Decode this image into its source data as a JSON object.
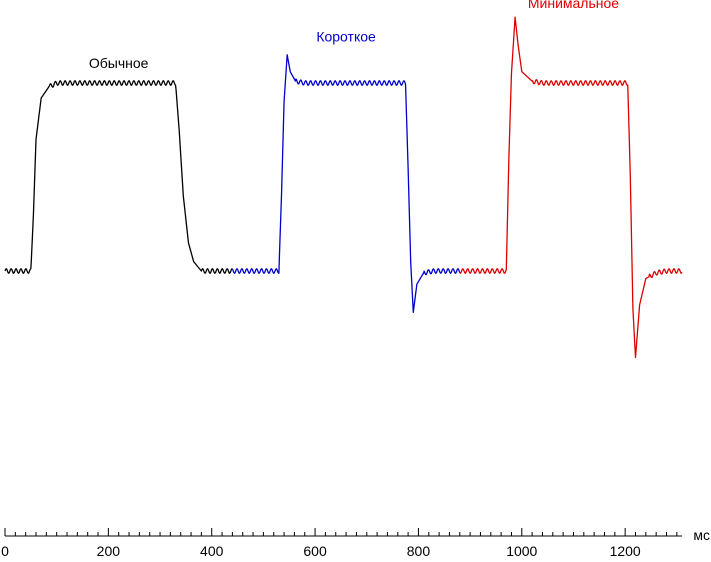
{
  "chart_data": {
    "type": "line",
    "title": "",
    "xlabel": "мс",
    "ylabel": "",
    "xlim": [
      0,
      1310
    ],
    "ylim": [
      -1.0,
      1.45
    ],
    "grid": false,
    "legend": "none",
    "x_ticks": [
      0,
      200,
      400,
      600,
      800,
      1000,
      1200
    ],
    "x_minor_step": 20,
    "series": [
      {
        "name": "Обычное",
        "color": "#000000",
        "points": [
          [
            0,
            0.0
          ],
          [
            50,
            0.0
          ],
          [
            55,
            0.3
          ],
          [
            60,
            0.7
          ],
          [
            70,
            0.92
          ],
          [
            85,
            0.98
          ],
          [
            100,
            1.0
          ],
          [
            330,
            1.0
          ],
          [
            337,
            0.75
          ],
          [
            345,
            0.4
          ],
          [
            355,
            0.15
          ],
          [
            365,
            0.05
          ],
          [
            380,
            0.0
          ],
          [
            440,
            0.0
          ]
        ]
      },
      {
        "name": "Короткое",
        "color": "#0000cc",
        "points": [
          [
            440,
            0.0
          ],
          [
            530,
            0.0
          ],
          [
            535,
            0.4
          ],
          [
            540,
            0.9
          ],
          [
            546,
            1.15
          ],
          [
            552,
            1.06
          ],
          [
            562,
            1.01
          ],
          [
            580,
            1.0
          ],
          [
            775,
            1.0
          ],
          [
            780,
            0.55
          ],
          [
            785,
            0.05
          ],
          [
            790,
            -0.22
          ],
          [
            797,
            -0.07
          ],
          [
            810,
            -0.01
          ],
          [
            830,
            0.0
          ],
          [
            880,
            0.0
          ]
        ]
      },
      {
        "name": "Минимальное",
        "color": "#dd0000",
        "points": [
          [
            880,
            0.0
          ],
          [
            970,
            0.0
          ],
          [
            975,
            0.6
          ],
          [
            980,
            1.05
          ],
          [
            987,
            1.35
          ],
          [
            993,
            1.2
          ],
          [
            1000,
            1.06
          ],
          [
            1020,
            1.01
          ],
          [
            1040,
            1.0
          ],
          [
            1205,
            1.0
          ],
          [
            1210,
            0.5
          ],
          [
            1215,
            -0.2
          ],
          [
            1220,
            -0.46
          ],
          [
            1228,
            -0.18
          ],
          [
            1240,
            -0.04
          ],
          [
            1260,
            -0.01
          ],
          [
            1280,
            0.0
          ],
          [
            1310,
            0.0
          ]
        ]
      }
    ],
    "annotations": [
      {
        "text": "Обычное",
        "x": 220,
        "y": 1.08,
        "color": "#000000"
      },
      {
        "text": "Короткое",
        "x": 660,
        "y": 1.22,
        "color": "#0000cc"
      },
      {
        "text": "Минимальное",
        "x": 1100,
        "y": 1.4,
        "color": "#dd0000"
      }
    ]
  }
}
